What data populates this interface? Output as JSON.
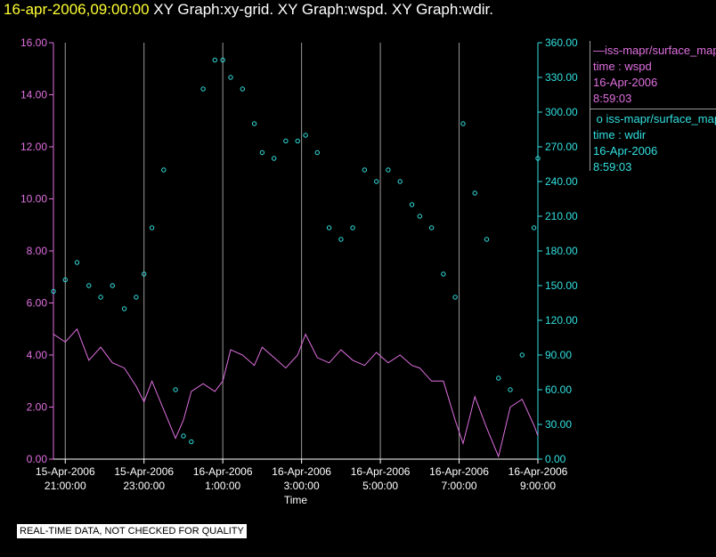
{
  "header": {
    "date": "16-apr-2006,09:00:00",
    "graphs": "XY Graph:xy-grid.  XY Graph:wspd.  XY Graph:wdir."
  },
  "legend": {
    "wspd": {
      "name": "iss-mapr/surface_mapr",
      "quantity": "time : wspd",
      "date": "16-Apr-2006",
      "time": "8:59:03"
    },
    "wdir": {
      "name": "iss-mapr/surface_mapr",
      "quantity": "time : wdir",
      "date": "16-Apr-2006",
      "time": "8:59:03"
    }
  },
  "footer": {
    "note": "REAL-TIME DATA, NOT CHECKED FOR QUALITY"
  },
  "colors": {
    "wspd": "#e070e0",
    "wdir": "#33e0e0",
    "grid": "#9a9a9a",
    "title_date": "#ffff33"
  },
  "chart_data": {
    "type": "line",
    "title": "XY Graph:xy-grid.  XY Graph:wspd.  XY Graph:wdir.",
    "xlabel": "Time",
    "x_range_hours": [
      20.7,
      9.0
    ],
    "x_ticks": [
      {
        "hour": 21,
        "date": "15-Apr-2006",
        "time": "21:00:00"
      },
      {
        "hour": 23,
        "date": "15-Apr-2006",
        "time": "23:00:00"
      },
      {
        "hour": 25,
        "date": "16-Apr-2006",
        "time": "1:00:00"
      },
      {
        "hour": 27,
        "date": "16-Apr-2006",
        "time": "3:00:00"
      },
      {
        "hour": 29,
        "date": "16-Apr-2006",
        "time": "5:00:00"
      },
      {
        "hour": 31,
        "date": "16-Apr-2006",
        "time": "7:00:00"
      },
      {
        "hour": 33,
        "date": "16-Apr-2006",
        "time": "9:00:00"
      }
    ],
    "y_left": {
      "series": "wspd",
      "range": [
        0,
        16
      ],
      "ticks": [
        "0.00",
        "2.00",
        "4.00",
        "6.00",
        "8.00",
        "10.00",
        "12.00",
        "14.00",
        "16.00"
      ]
    },
    "y_right": {
      "series": "wdir",
      "range": [
        0,
        360
      ],
      "ticks": [
        "0.00",
        "30.00",
        "60.00",
        "90.00",
        "120.00",
        "150.00",
        "180.00",
        "210.00",
        "240.00",
        "270.00",
        "300.00",
        "330.00",
        "360.00"
      ]
    },
    "series": [
      {
        "name": "wspd",
        "axis": "left",
        "style": "line",
        "x_hours": [
          20.7,
          21.0,
          21.3,
          21.6,
          21.9,
          22.2,
          22.5,
          22.8,
          23.0,
          23.2,
          23.5,
          23.8,
          24.0,
          24.2,
          24.5,
          24.8,
          25.0,
          25.2,
          25.5,
          25.8,
          26.0,
          26.3,
          26.6,
          26.9,
          27.1,
          27.4,
          27.7,
          28.0,
          28.3,
          28.6,
          28.9,
          29.2,
          29.5,
          29.8,
          30.0,
          30.3,
          30.6,
          30.9,
          31.1,
          31.4,
          31.7,
          32.0,
          32.3,
          32.6,
          32.9,
          33.0
        ],
        "values": [
          4.8,
          4.5,
          5.0,
          3.8,
          4.3,
          3.7,
          3.5,
          2.8,
          2.2,
          3.0,
          1.9,
          0.8,
          1.5,
          2.6,
          2.9,
          2.6,
          3.0,
          4.2,
          4.0,
          3.6,
          4.3,
          3.9,
          3.5,
          4.0,
          4.8,
          3.9,
          3.7,
          4.2,
          3.8,
          3.6,
          4.1,
          3.7,
          4.0,
          3.6,
          3.5,
          3.0,
          3.0,
          1.5,
          0.6,
          2.4,
          1.2,
          0.1,
          2.0,
          2.3,
          1.3,
          0.9
        ]
      },
      {
        "name": "wdir",
        "axis": "right",
        "style": "points",
        "x_hours": [
          20.7,
          21.0,
          21.3,
          21.6,
          21.9,
          22.2,
          22.5,
          22.8,
          23.0,
          23.2,
          23.5,
          23.8,
          24.0,
          24.2,
          24.5,
          24.8,
          25.0,
          25.2,
          25.5,
          25.8,
          26.0,
          26.3,
          26.6,
          26.9,
          27.1,
          27.4,
          27.7,
          28.0,
          28.3,
          28.6,
          28.9,
          29.2,
          29.5,
          29.8,
          30.0,
          30.3,
          30.6,
          30.9,
          31.1,
          31.4,
          31.7,
          32.0,
          32.3,
          32.6,
          32.9,
          33.0
        ],
        "values": [
          145,
          155,
          170,
          150,
          140,
          150,
          130,
          140,
          160,
          200,
          250,
          60,
          20,
          15,
          320,
          345,
          345,
          330,
          320,
          290,
          265,
          260,
          275,
          275,
          280,
          265,
          200,
          190,
          200,
          250,
          240,
          250,
          240,
          220,
          210,
          200,
          160,
          140,
          290,
          230,
          190,
          70,
          60,
          90,
          200,
          260
        ]
      }
    ]
  }
}
